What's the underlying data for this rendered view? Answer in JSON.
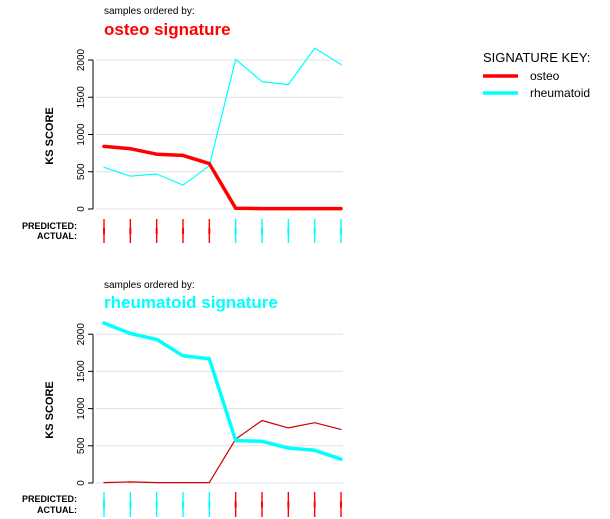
{
  "colors": {
    "osteo": "#ff0000",
    "rheumatoid": "#00ffff",
    "osteo_dark": "#cc0000",
    "grid": "#e0e0e0"
  },
  "key": {
    "title": "SIGNATURE KEY:",
    "items": [
      {
        "label": "osteo",
        "color": "#ff0000"
      },
      {
        "label": "rheumatoid",
        "color": "#00ffff"
      }
    ]
  },
  "chart_data": [
    {
      "type": "line",
      "subtitle": "samples ordered by:",
      "title": "osteo signature",
      "title_color": "#ff0000",
      "ylabel": "KS SCORE",
      "ylim": [
        0,
        2150
      ],
      "yticks": [
        "0",
        "500",
        "1000",
        "1500",
        "2000"
      ],
      "x": [
        1,
        2,
        3,
        4,
        5,
        6,
        7,
        8,
        9,
        10
      ],
      "series": [
        {
          "name": "osteo",
          "color": "#ff0000",
          "emphasis": true,
          "values": [
            840,
            810,
            735,
            720,
            610,
            10,
            5,
            5,
            5,
            5
          ]
        },
        {
          "name": "rheumatoid",
          "color": "#00ffff",
          "emphasis": false,
          "values": [
            560,
            440,
            470,
            320,
            580,
            2010,
            1710,
            1670,
            2160,
            1940
          ]
        }
      ],
      "row_labels": [
        "PREDICTED:",
        "ACTUAL:"
      ],
      "predicted": [
        "osteo",
        "osteo",
        "osteo",
        "osteo",
        "osteo",
        "rheumatoid",
        "rheumatoid",
        "rheumatoid",
        "rheumatoid",
        "rheumatoid"
      ],
      "actual": [
        "osteo",
        "osteo",
        "osteo",
        "osteo",
        "osteo",
        "rheumatoid",
        "rheumatoid",
        "rheumatoid",
        "rheumatoid",
        "rheumatoid"
      ]
    },
    {
      "type": "line",
      "subtitle": "samples ordered by:",
      "title": "rheumatoid signature",
      "title_color": "#00ffff",
      "ylabel": "KS SCORE",
      "ylim": [
        0,
        2150
      ],
      "yticks": [
        "0",
        "500",
        "1000",
        "1500",
        "2000"
      ],
      "x": [
        1,
        2,
        3,
        4,
        5,
        6,
        7,
        8,
        9,
        10
      ],
      "series": [
        {
          "name": "osteo",
          "color": "#cc0000",
          "emphasis": false,
          "values": [
            5,
            15,
            5,
            5,
            5,
            590,
            840,
            740,
            810,
            720
          ]
        },
        {
          "name": "rheumatoid",
          "color": "#00ffff",
          "emphasis": true,
          "values": [
            2150,
            2010,
            1930,
            1710,
            1670,
            570,
            560,
            470,
            440,
            320
          ]
        }
      ],
      "row_labels": [
        "PREDICTED:",
        "ACTUAL:"
      ],
      "predicted": [
        "rheumatoid",
        "rheumatoid",
        "rheumatoid",
        "rheumatoid",
        "rheumatoid",
        "osteo",
        "osteo",
        "osteo",
        "osteo",
        "osteo"
      ],
      "actual": [
        "rheumatoid",
        "rheumatoid",
        "rheumatoid",
        "rheumatoid",
        "rheumatoid",
        "osteo",
        "osteo",
        "osteo",
        "osteo",
        "osteo"
      ]
    }
  ]
}
